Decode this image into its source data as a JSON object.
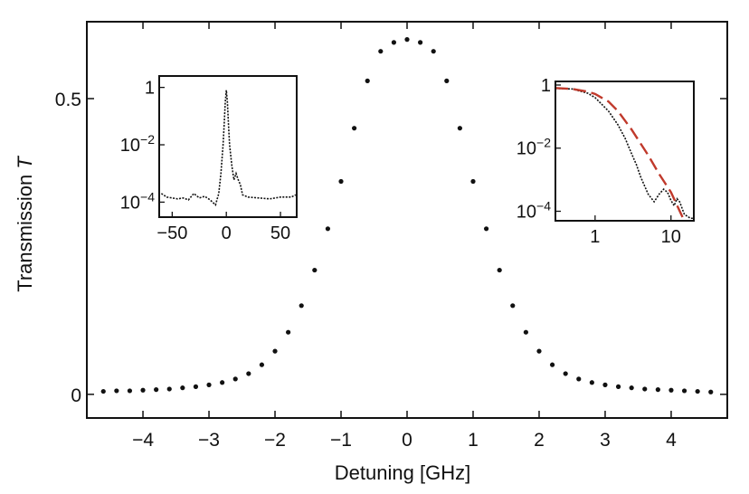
{
  "chart_data": [
    {
      "type": "scatter",
      "xlabel": "Detuning [GHz]",
      "ylabel": "Transmission",
      "ylabel_symbol": "T",
      "xlim": [
        -4.85,
        4.85
      ],
      "ylim": [
        -0.04,
        0.63
      ],
      "xticks": [
        -4,
        -3,
        -2,
        -1,
        0,
        1,
        2,
        3,
        4
      ],
      "xtick_labels": [
        "−4",
        "−3",
        "−2",
        "−1",
        "0",
        "1",
        "2",
        "3",
        "4"
      ],
      "yticks": [
        0,
        0.5
      ],
      "ytick_labels": [
        "0",
        "0.5"
      ],
      "grid": false,
      "series": [
        {
          "marker": "dot",
          "color": "#111111",
          "points": [
            [
              -4.6,
              0.005
            ],
            [
              -4.4,
              0.006
            ],
            [
              -4.2,
              0.006
            ],
            [
              -4.0,
              0.007
            ],
            [
              -3.8,
              0.008
            ],
            [
              -3.6,
              0.009
            ],
            [
              -3.4,
              0.011
            ],
            [
              -3.2,
              0.013
            ],
            [
              -3.0,
              0.016
            ],
            [
              -2.8,
              0.02
            ],
            [
              -2.6,
              0.026
            ],
            [
              -2.4,
              0.035
            ],
            [
              -2.2,
              0.05
            ],
            [
              -2.0,
              0.073
            ],
            [
              -1.8,
              0.105
            ],
            [
              -1.6,
              0.15
            ],
            [
              -1.4,
              0.21
            ],
            [
              -1.2,
              0.28
            ],
            [
              -1.0,
              0.36
            ],
            [
              -0.8,
              0.45
            ],
            [
              -0.6,
              0.53
            ],
            [
              -0.4,
              0.58
            ],
            [
              -0.2,
              0.595
            ],
            [
              0.0,
              0.6
            ],
            [
              0.2,
              0.595
            ],
            [
              0.4,
              0.58
            ],
            [
              0.6,
              0.53
            ],
            [
              0.8,
              0.45
            ],
            [
              1.0,
              0.36
            ],
            [
              1.2,
              0.28
            ],
            [
              1.4,
              0.21
            ],
            [
              1.6,
              0.15
            ],
            [
              1.8,
              0.105
            ],
            [
              2.0,
              0.073
            ],
            [
              2.2,
              0.05
            ],
            [
              2.4,
              0.035
            ],
            [
              2.6,
              0.026
            ],
            [
              2.8,
              0.02
            ],
            [
              3.0,
              0.016
            ],
            [
              3.2,
              0.013
            ],
            [
              3.4,
              0.011
            ],
            [
              3.6,
              0.009
            ],
            [
              3.8,
              0.008
            ],
            [
              4.0,
              0.007
            ],
            [
              4.2,
              0.006
            ],
            [
              4.4,
              0.005
            ],
            [
              4.6,
              0.004
            ]
          ]
        }
      ]
    },
    {
      "type": "line",
      "yscale": "log",
      "xlim": [
        -62,
        65
      ],
      "ylim": [
        3e-05,
        2.5
      ],
      "xticks": [
        -50,
        0,
        50
      ],
      "xtick_labels": [
        "−50",
        "0",
        "50"
      ],
      "yticks": [
        1,
        0.01,
        0.0001
      ],
      "ytick_labels": [
        "1",
        "10",
        "10"
      ],
      "ytick_exponents": [
        "",
        "−2",
        "−4"
      ],
      "series": [
        {
          "style": "dotted-line",
          "color": "#111111",
          "points": [
            [
              -60,
              0.0002
            ],
            [
              -55,
              0.00015
            ],
            [
              -50,
              0.00014
            ],
            [
              -45,
              0.00013
            ],
            [
              -40,
              0.00014
            ],
            [
              -35,
              0.00012
            ],
            [
              -30,
              0.0002
            ],
            [
              -25,
              0.00014
            ],
            [
              -20,
              0.00016
            ],
            [
              -15,
              0.00012
            ],
            [
              -10,
              8e-05
            ],
            [
              -7,
              0.0002
            ],
            [
              -5,
              0.001
            ],
            [
              -3,
              0.01
            ],
            [
              -2,
              0.05
            ],
            [
              -1,
              0.3
            ],
            [
              0,
              0.8
            ],
            [
              1,
              0.3
            ],
            [
              2,
              0.05
            ],
            [
              3,
              0.01
            ],
            [
              5,
              0.002
            ],
            [
              7,
              0.0006
            ],
            [
              9,
              0.001
            ],
            [
              11,
              0.0006
            ],
            [
              13,
              0.0004
            ],
            [
              15,
              0.00018
            ],
            [
              20,
              0.00015
            ],
            [
              30,
              0.00014
            ],
            [
              40,
              0.00013
            ],
            [
              50,
              0.00015
            ],
            [
              60,
              0.00015
            ],
            [
              64,
              0.00018
            ]
          ]
        }
      ]
    },
    {
      "type": "line",
      "xscale": "log",
      "yscale": "log",
      "xlim": [
        0.3,
        20
      ],
      "ylim": [
        5e-05,
        1.3
      ],
      "xticks": [
        1,
        10
      ],
      "xtick_labels": [
        "1",
        "10"
      ],
      "yticks": [
        1,
        0.01,
        0.0001
      ],
      "ytick_labels": [
        "1",
        "10",
        "10"
      ],
      "ytick_exponents": [
        "",
        "−2",
        "−4"
      ],
      "series": [
        {
          "style": "dotted-line",
          "color": "#111111",
          "points": [
            [
              0.3,
              0.78
            ],
            [
              0.5,
              0.75
            ],
            [
              0.8,
              0.55
            ],
            [
              1.0,
              0.4
            ],
            [
              1.5,
              0.15
            ],
            [
              2.0,
              0.055
            ],
            [
              2.5,
              0.02
            ],
            [
              3.0,
              0.007
            ],
            [
              3.5,
              0.003
            ],
            [
              4.0,
              0.0012
            ],
            [
              5.0,
              0.00035
            ],
            [
              6.0,
              0.0002
            ],
            [
              7.0,
              0.00035
            ],
            [
              8.0,
              0.0005
            ],
            [
              9.0,
              0.0004
            ],
            [
              10.0,
              0.00022
            ],
            [
              11.0,
              0.00015
            ],
            [
              12.0,
              0.00025
            ],
            [
              13.0,
              0.0002
            ],
            [
              15.0,
              8e-05
            ],
            [
              18.0,
              6e-05
            ],
            [
              20.0,
              6e-05
            ]
          ]
        },
        {
          "style": "dashed-line",
          "color": "#c0392b",
          "points": [
            [
              0.3,
              0.8
            ],
            [
              0.5,
              0.75
            ],
            [
              0.8,
              0.62
            ],
            [
              1.0,
              0.52
            ],
            [
              1.5,
              0.3
            ],
            [
              2.0,
              0.15
            ],
            [
              3.0,
              0.04
            ],
            [
              5.0,
              0.006
            ],
            [
              7.0,
              0.0015
            ],
            [
              10.0,
              0.0004
            ],
            [
              14.0,
              7e-05
            ],
            [
              20.0,
              1e-05
            ]
          ]
        }
      ]
    }
  ]
}
